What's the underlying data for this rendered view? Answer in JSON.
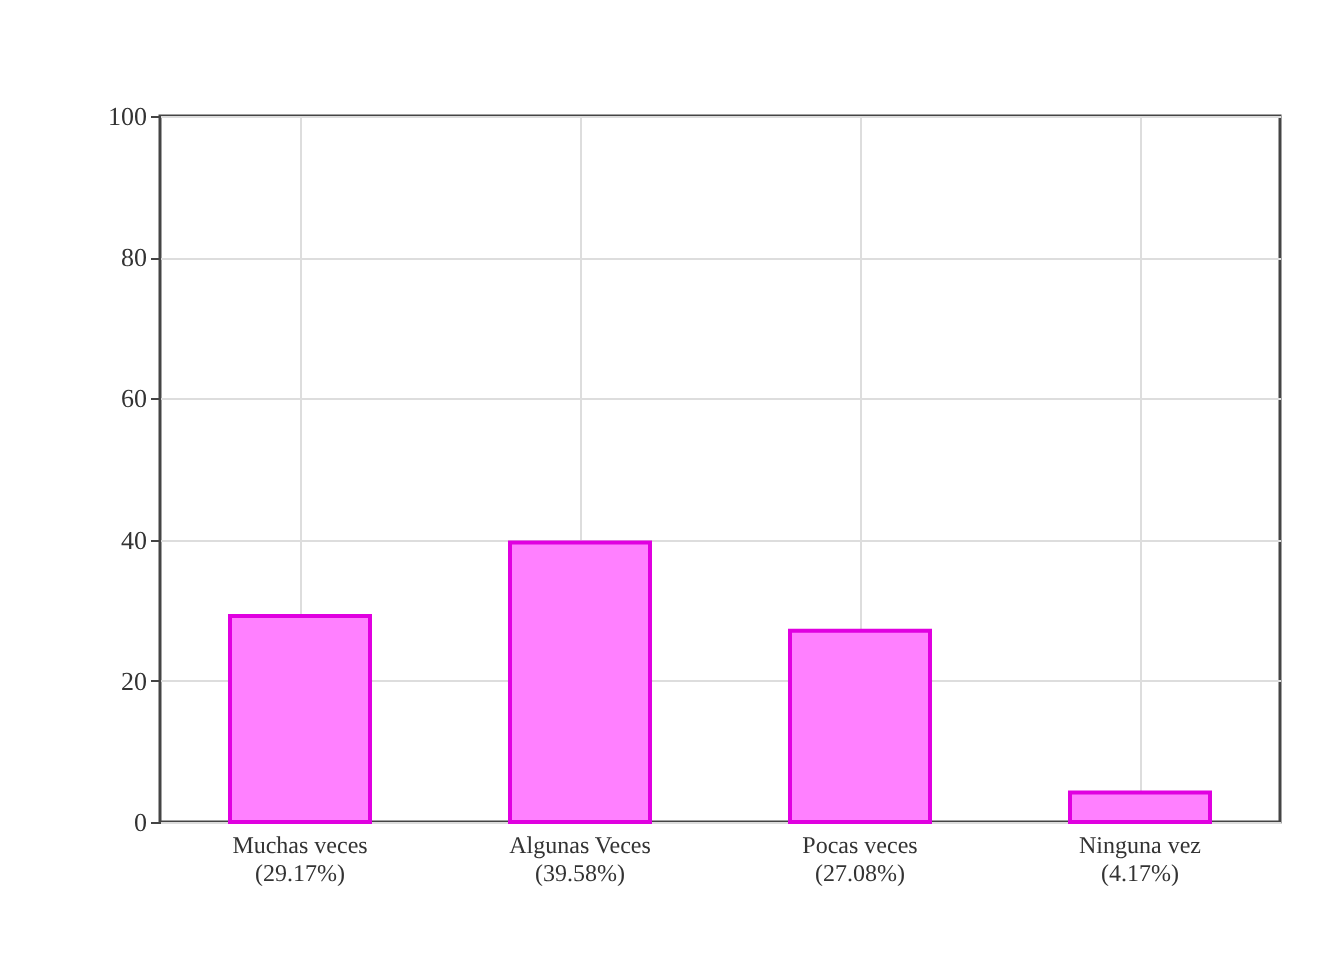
{
  "chart_data": {
    "type": "bar",
    "categories": [
      "Muchas veces\n(29.17%)",
      "Algunas Veces\n(39.58%)",
      "Pocas veces\n(27.08%)",
      "Ninguna vez\n(4.17%)"
    ],
    "values": [
      29.17,
      39.58,
      27.08,
      4.17
    ],
    "color": "#ff80ff",
    "ylim": [
      0,
      100
    ],
    "yticks": [
      0,
      20,
      40,
      60,
      80,
      100
    ],
    "grid": true
  }
}
